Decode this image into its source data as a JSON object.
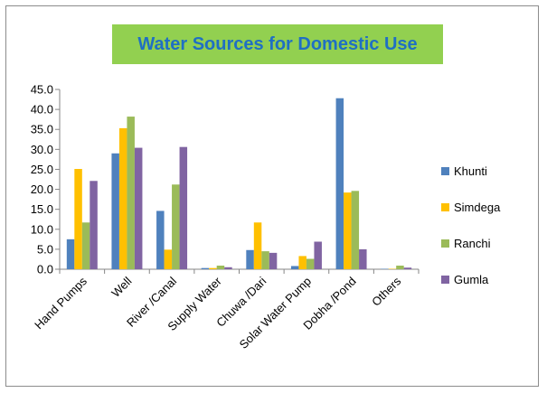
{
  "chart_data": {
    "type": "bar",
    "title": "Water Sources for Domestic Use",
    "xlabel": "",
    "ylabel": "",
    "ylim": [
      0,
      45
    ],
    "yticks": [
      "0.0",
      "5.0",
      "10.0",
      "15.0",
      "20.0",
      "25.0",
      "30.0",
      "35.0",
      "40.0",
      "45.0"
    ],
    "grid": false,
    "legend_position": "right",
    "categories": [
      "Hand Pumps",
      "Well",
      "River /Canal",
      "Supply Water",
      "Chuwa /Dari",
      "Solar Water Pump",
      "Dobha /Pond",
      "Others"
    ],
    "series": [
      {
        "name": "Khunti",
        "color": "#4f81bd",
        "values": [
          7.5,
          29.0,
          14.6,
          0.3,
          4.8,
          0.8,
          42.8,
          0.1
        ]
      },
      {
        "name": "Simdega",
        "color": "#ffc000",
        "values": [
          25.1,
          35.3,
          4.9,
          0.3,
          11.7,
          3.3,
          19.2,
          0.1
        ]
      },
      {
        "name": "Ranchi",
        "color": "#9bbb59",
        "values": [
          11.7,
          38.2,
          21.2,
          0.9,
          4.5,
          2.6,
          19.6,
          0.9
        ]
      },
      {
        "name": "Gumla",
        "color": "#8064a2",
        "values": [
          22.1,
          30.4,
          30.6,
          0.5,
          4.1,
          6.9,
          5.0,
          0.4
        ]
      }
    ]
  }
}
